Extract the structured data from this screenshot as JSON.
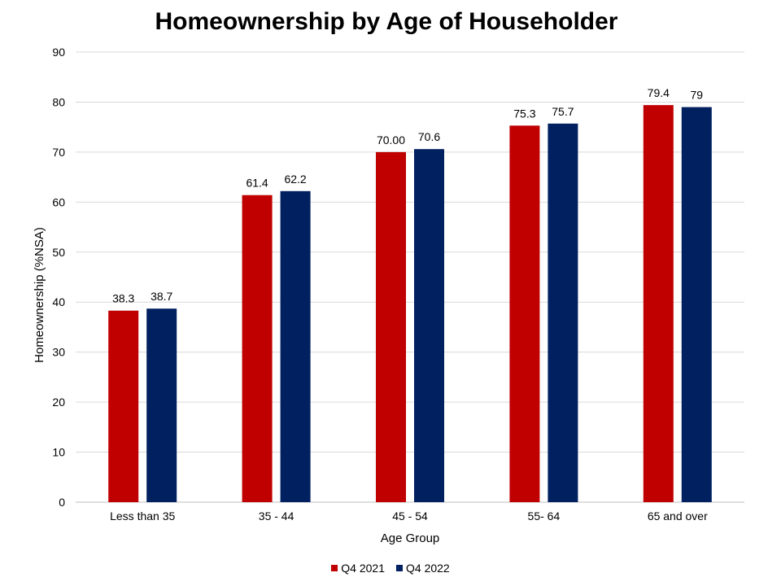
{
  "chart_data": {
    "type": "bar",
    "title": "Homeownership by Age of Householder",
    "xlabel": "Age Group",
    "ylabel": "Homeownership (%NSA)",
    "ylim": [
      0,
      90
    ],
    "yticks": [
      0,
      10,
      20,
      30,
      40,
      50,
      60,
      70,
      80,
      90
    ],
    "grid": true,
    "legend_position": "bottom",
    "categories": [
      "Less than 35",
      "35 - 44",
      "45 - 54",
      "55- 64",
      "65 and over"
    ],
    "series": [
      {
        "name": "Q4 2021",
        "color": "#C00000",
        "values": [
          38.3,
          61.4,
          70.0,
          75.3,
          79.4
        ],
        "labels": [
          "38.3",
          "61.4",
          "70.00",
          "75.3",
          "79.4"
        ]
      },
      {
        "name": "Q4 2022",
        "color": "#002060",
        "values": [
          38.7,
          62.2,
          70.6,
          75.7,
          79
        ],
        "labels": [
          "38.7",
          "62.2",
          "70.6",
          "75.7",
          "79"
        ]
      }
    ]
  }
}
